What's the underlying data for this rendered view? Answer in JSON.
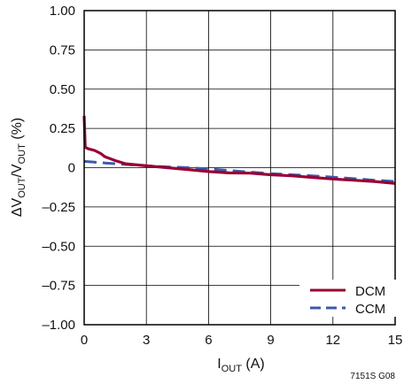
{
  "chart_data": {
    "type": "line",
    "xlim": [
      0,
      15
    ],
    "ylim": [
      -1.0,
      1.0
    ],
    "x_ticks": [
      0,
      3,
      6,
      9,
      12,
      15
    ],
    "x_tick_labels": [
      "0",
      "3",
      "6",
      "9",
      "12",
      "15"
    ],
    "y_ticks": [
      1.0,
      0.75,
      0.5,
      0.25,
      0,
      -0.25,
      -0.5,
      -0.75,
      -1.0
    ],
    "y_tick_labels": [
      "1.00",
      "0.75",
      "0.50",
      "0.25",
      "0",
      "–0.25",
      "–0.50",
      "–0.75",
      "–1.00"
    ],
    "xlabel": {
      "main": "I",
      "sub": "OUT",
      "rest": " (A)"
    },
    "ylabel": {
      "p1": "ΔV",
      "s1": "OUT",
      "p2": "/V",
      "s2": "OUT",
      "p3": " (%)"
    },
    "grid": true,
    "legend_position": "bottom-right",
    "figure_code": "7151S G08",
    "series": [
      {
        "name": "DCM",
        "color": "#990033",
        "style": "solid",
        "points": [
          [
            0.0,
            0.33
          ],
          [
            0.05,
            0.13
          ],
          [
            0.2,
            0.12
          ],
          [
            0.5,
            0.11
          ],
          [
            0.8,
            0.09
          ],
          [
            1.0,
            0.07
          ],
          [
            1.5,
            0.045
          ],
          [
            2.0,
            0.025
          ],
          [
            3.0,
            0.012
          ],
          [
            4.0,
            0.0
          ],
          [
            5.0,
            -0.012
          ],
          [
            6.0,
            -0.025
          ],
          [
            7.0,
            -0.033
          ],
          [
            8.0,
            -0.035
          ],
          [
            9.0,
            -0.045
          ],
          [
            10.0,
            -0.052
          ],
          [
            11.0,
            -0.062
          ],
          [
            12.0,
            -0.072
          ],
          [
            13.0,
            -0.08
          ],
          [
            14.0,
            -0.088
          ],
          [
            15.0,
            -0.1
          ]
        ]
      },
      {
        "name": "CCM",
        "color": "#3d5aa8",
        "style": "dashed",
        "points": [
          [
            0.0,
            0.04
          ],
          [
            0.5,
            0.035
          ],
          [
            1.0,
            0.03
          ],
          [
            2.0,
            0.02
          ],
          [
            3.0,
            0.012
          ],
          [
            4.0,
            0.005
          ],
          [
            5.0,
            0.0
          ],
          [
            6.0,
            -0.008
          ],
          [
            7.0,
            -0.018
          ],
          [
            8.0,
            -0.028
          ],
          [
            9.0,
            -0.038
          ],
          [
            10.0,
            -0.045
          ],
          [
            11.0,
            -0.052
          ],
          [
            12.0,
            -0.06
          ],
          [
            13.0,
            -0.07
          ],
          [
            14.0,
            -0.08
          ],
          [
            15.0,
            -0.088
          ]
        ]
      }
    ]
  }
}
